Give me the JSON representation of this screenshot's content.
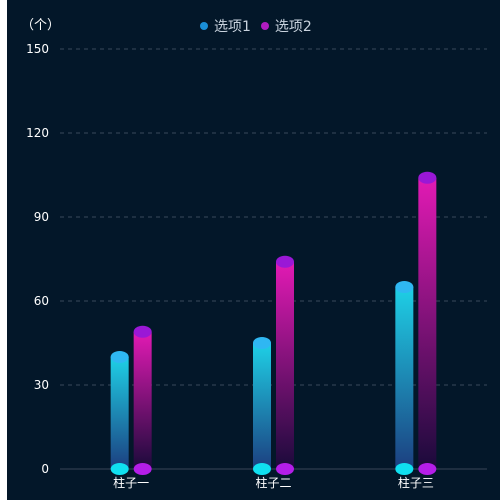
{
  "chart_data": {
    "type": "bar",
    "unit_label": "（个）",
    "categories": [
      "柱子一",
      "柱子二",
      "柱子三"
    ],
    "series": [
      {
        "name": "选项1",
        "values": [
          40,
          45,
          65
        ],
        "color_top": "#1ed0e6",
        "color_bottom": "#1c3f80",
        "cap_color": "#2fb7f2",
        "base_color": "#10e0f0"
      },
      {
        "name": "选项2",
        "values": [
          49,
          74,
          104
        ],
        "color_top": "#e21ab4",
        "color_bottom": "#1a0a3a",
        "cap_color": "#9a18d6",
        "base_color": "#b41ee8"
      }
    ],
    "yticks": [
      "0",
      "30",
      "60",
      "90",
      "120",
      "150"
    ],
    "ylim": [
      0,
      150
    ],
    "grid": true,
    "legend_position": "top-center"
  }
}
